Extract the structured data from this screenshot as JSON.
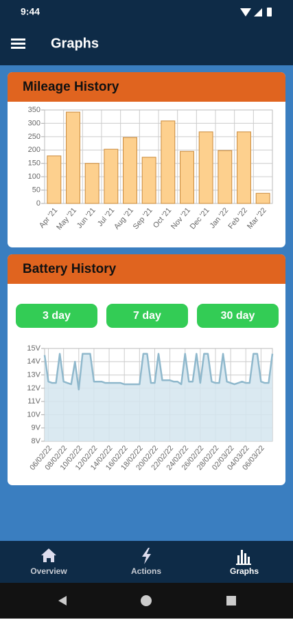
{
  "status_bar": {
    "time": "9:44"
  },
  "app_bar": {
    "title": "Graphs"
  },
  "chart_data": [
    {
      "type": "bar",
      "title": "Mileage History",
      "categories": [
        "Apr '21",
        "May '21",
        "Jun '21",
        "Jul '21",
        "Aug '21",
        "Sep '21",
        "Oct '21",
        "Nov '21",
        "Dec '21",
        "Jan '22",
        "Feb '22",
        "Mar '22"
      ],
      "values": [
        178,
        342,
        150,
        203,
        247,
        173,
        309,
        195,
        268,
        198,
        268,
        38
      ],
      "color": "#fdd08e",
      "edge_color": "#c9893a",
      "ylim": [
        0,
        350
      ],
      "yticks": [
        0,
        50,
        100,
        150,
        200,
        250,
        300,
        350
      ],
      "grid": true
    },
    {
      "type": "area",
      "title": "Battery History",
      "categories": [
        null,
        "06/02/22",
        null,
        null,
        null,
        "08/02/22",
        null,
        null,
        null,
        "10/02/22",
        null,
        null,
        null,
        "12/02/22",
        null,
        null,
        null,
        "14/02/22",
        null,
        null,
        null,
        "16/02/22",
        null,
        null,
        null,
        "18/02/22",
        null,
        null,
        null,
        "20/02/22",
        null,
        null,
        null,
        "22/02/22",
        null,
        null,
        null,
        "24/02/22",
        null,
        null,
        null,
        "26/02/22",
        null,
        null,
        null,
        "28/02/22",
        null,
        null,
        null,
        "02/03/22",
        null,
        null,
        null,
        "04/03/22",
        null,
        null,
        null,
        "06/03/22",
        null,
        null,
        null
      ],
      "values": [
        14.5,
        12.5,
        12.4,
        12.4,
        14.6,
        12.5,
        12.4,
        12.3,
        14.0,
        11.9,
        14.6,
        14.6,
        14.6,
        12.5,
        12.5,
        12.5,
        12.4,
        12.4,
        12.4,
        12.4,
        12.4,
        12.3,
        12.3,
        12.3,
        12.3,
        12.3,
        14.6,
        14.6,
        12.4,
        12.4,
        14.6,
        12.6,
        12.6,
        12.6,
        12.5,
        12.5,
        12.3,
        14.6,
        12.5,
        12.5,
        14.6,
        12.4,
        14.6,
        14.6,
        12.5,
        12.4,
        12.4,
        14.6,
        12.5,
        12.4,
        12.3,
        12.4,
        12.5,
        12.4,
        12.4,
        14.6,
        14.6,
        12.5,
        12.4,
        12.4,
        14.6
      ],
      "color": "#8fb8cc",
      "fill_color": "#d3e5ee",
      "ylim": [
        8,
        15
      ],
      "yticks": [
        {
          "value": 8,
          "label": "8V"
        },
        {
          "value": 9,
          "label": "9V"
        },
        {
          "value": 10,
          "label": "10V"
        },
        {
          "value": 11,
          "label": "11V"
        },
        {
          "value": 12,
          "label": "12V"
        },
        {
          "value": 13,
          "label": "13V"
        },
        {
          "value": 14,
          "label": "14V"
        },
        {
          "value": 15,
          "label": "15V"
        }
      ],
      "grid": true
    }
  ],
  "range_buttons": [
    "3 day",
    "7 day",
    "30 day"
  ],
  "bottom_nav": [
    {
      "label": "Overview"
    },
    {
      "label": "Actions"
    },
    {
      "label": "Graphs",
      "selected": true
    }
  ]
}
